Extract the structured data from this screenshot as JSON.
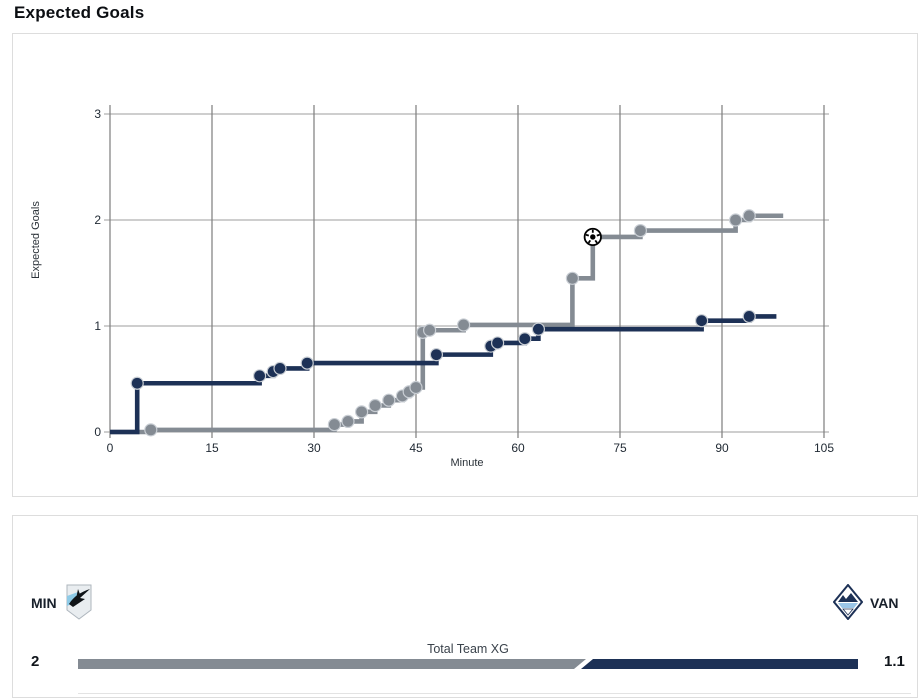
{
  "page": {
    "title": "Expected Goals"
  },
  "chart_data": {
    "type": "line",
    "subtype": "step-after",
    "title": "Expected Goals",
    "xlabel": "Minute",
    "ylabel": "Expected Goals",
    "xlim": [
      0,
      105
    ],
    "ylim": [
      0,
      3
    ],
    "x_ticks": [
      0,
      15,
      30,
      45,
      60,
      75,
      90,
      105
    ],
    "y_ticks": [
      0,
      1,
      2,
      3
    ],
    "grid": true,
    "legend": false,
    "series": [
      {
        "name": "MIN",
        "color": "#848b93",
        "end_minute": 99,
        "points": [
          [
            0,
            0
          ],
          [
            6,
            0.02
          ],
          [
            33,
            0.07
          ],
          [
            35,
            0.1
          ],
          [
            37,
            0.19
          ],
          [
            39,
            0.25
          ],
          [
            41,
            0.3
          ],
          [
            43,
            0.34
          ],
          [
            44,
            0.38
          ],
          [
            45,
            0.42
          ],
          [
            46,
            0.94
          ],
          [
            47,
            0.96
          ],
          [
            52,
            1.01
          ],
          [
            68,
            1.45
          ],
          [
            71,
            1.84
          ],
          [
            78,
            1.9
          ],
          [
            92,
            2.0
          ],
          [
            94,
            2.04
          ]
        ],
        "goals": [
          {
            "minute": 71,
            "xg": 1.84
          }
        ]
      },
      {
        "name": "VAN",
        "color": "#1d3156",
        "end_minute": 98,
        "points": [
          [
            0,
            0
          ],
          [
            4,
            0.46
          ],
          [
            22,
            0.53
          ],
          [
            24,
            0.57
          ],
          [
            25,
            0.6
          ],
          [
            29,
            0.65
          ],
          [
            48,
            0.73
          ],
          [
            56,
            0.81
          ],
          [
            57,
            0.84
          ],
          [
            61,
            0.88
          ],
          [
            63,
            0.97
          ],
          [
            87,
            1.05
          ],
          [
            94,
            1.09
          ]
        ],
        "goals": []
      }
    ]
  },
  "summary": {
    "home_team": "MIN",
    "away_team": "VAN",
    "bar_label": "Total Team XG",
    "home_xg": "2",
    "away_xg": "1.1",
    "home_color": "#848b93",
    "away_color": "#1d3156"
  },
  "icons": {
    "goal_marker": "soccer-ball-icon",
    "home_logo": "minnesota-united-crest",
    "away_logo": "vancouver-whitecaps-crest"
  }
}
